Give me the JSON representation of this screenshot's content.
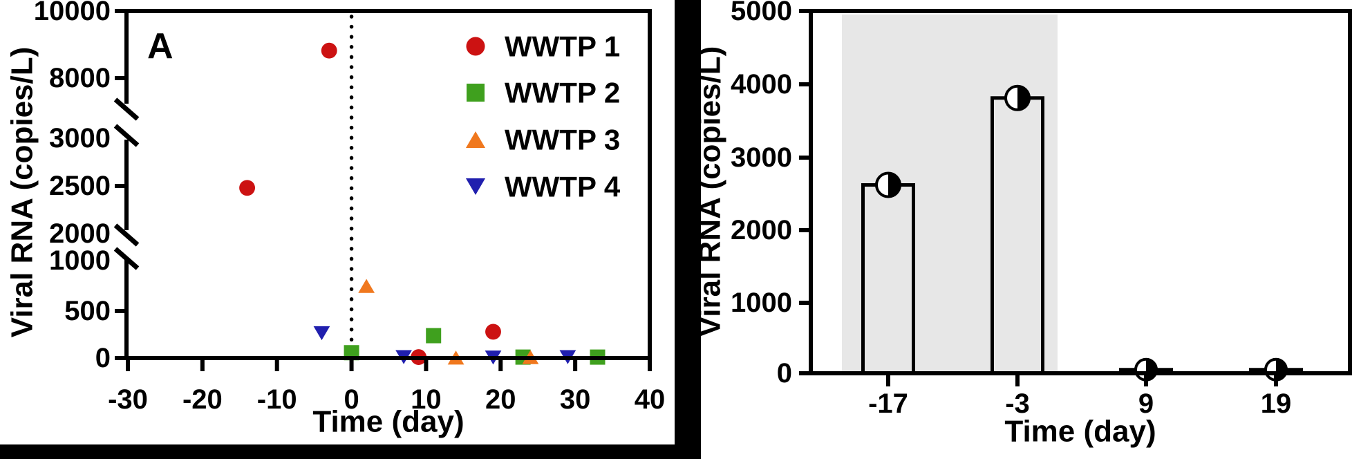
{
  "figure": {
    "description": "Two-panel wastewater viral RNA figure",
    "frame_color": "#000000",
    "background": "#ffffff"
  },
  "chart_data": [
    {
      "id": "A",
      "type": "scatter",
      "panel_label": "A",
      "xlabel": "Time (day)",
      "ylabel": "Viral RNA (copies/L)",
      "xlim": [
        -30,
        40
      ],
      "x_ticks": [
        -30,
        -20,
        -10,
        0,
        10,
        20,
        30,
        40
      ],
      "x_tick_labels": [
        "-30",
        "-20",
        "-10",
        "0",
        "10",
        "20",
        "30",
        "40"
      ],
      "y_axis_broken": true,
      "y_segments": [
        {
          "range": [
            0,
            1000
          ],
          "ticks": [
            0,
            500,
            1000
          ]
        },
        {
          "range": [
            2000,
            3000
          ],
          "ticks": [
            2000,
            2500,
            3000
          ]
        },
        {
          "range": [
            8000,
            10000
          ],
          "ticks": [
            8000,
            10000
          ]
        }
      ],
      "y_tick_labels": [
        "10000",
        "8000",
        "3000",
        "2500",
        "2000",
        "1000",
        "500",
        "0"
      ],
      "event_line_x": 0,
      "event_line_style": "dotted",
      "grid": false,
      "legend_position": "top-right",
      "series": [
        {
          "name": "WWTP 1",
          "marker": "circle",
          "color": "#cc1212",
          "points": [
            [
              -14,
              2480
            ],
            [
              -3,
              8820
            ],
            [
              9,
              10
            ],
            [
              19,
              270
            ]
          ]
        },
        {
          "name": "WWTP 2",
          "marker": "square",
          "color": "#3fa01e",
          "points": [
            [
              0,
              55
            ],
            [
              11,
              230
            ],
            [
              23,
              10
            ],
            [
              33,
              10
            ]
          ]
        },
        {
          "name": "WWTP 3",
          "marker": "triangle-up",
          "color": "#f0781e",
          "points": [
            [
              2,
              740
            ],
            [
              14,
              5
            ],
            [
              24,
              10
            ]
          ]
        },
        {
          "name": "WWTP 4",
          "marker": "triangle-down",
          "color": "#201fae",
          "points": [
            [
              -4,
              255
            ],
            [
              7,
              10
            ],
            [
              19,
              5
            ],
            [
              29,
              10
            ]
          ]
        }
      ]
    },
    {
      "id": "B",
      "type": "bar",
      "xlabel": "Time (day)",
      "ylabel": "Viral RNA (copies/L)",
      "categories": [
        "-17",
        "-3",
        "9",
        "19"
      ],
      "values": [
        2600,
        3800,
        50,
        50
      ],
      "ylim": [
        0,
        5000
      ],
      "y_ticks": [
        0,
        1000,
        2000,
        3000,
        4000,
        5000
      ],
      "y_tick_labels": [
        "5000",
        "4000",
        "3000",
        "2000",
        "1000",
        "0"
      ],
      "bar_fill": "none",
      "bar_outline": "#000000",
      "point_marker": "half-filled-circle",
      "shaded_region": {
        "covers_categories": [
          "-17",
          "-3"
        ],
        "color": "#e7e7e7"
      },
      "grid": false
    }
  ]
}
